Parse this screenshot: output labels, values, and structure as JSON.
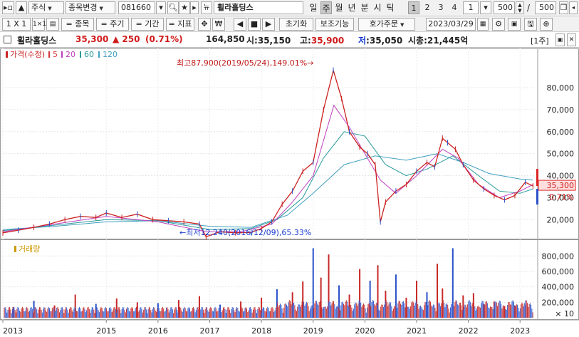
{
  "toolbar1": {
    "market_select": "주식",
    "change_item": "종목변경",
    "code": "081660",
    "stock_name": "휠라홀딩스",
    "periods": [
      "일",
      "주",
      "월",
      "년",
      "분",
      "시",
      "틱"
    ],
    "active_period": 1,
    "numbers": [
      "1",
      "2",
      "3",
      "4"
    ],
    "active_number": 0,
    "custom_number": "1",
    "count_value": "500",
    "count_total": "500"
  },
  "toolbar2": {
    "ratio": "1 X 1",
    "item": "종목",
    "cycle": "주기",
    "period": "기간",
    "indicator": "지표",
    "reset": "초기화",
    "aux": "보조기능",
    "order": "호가주문",
    "date": "2023/03/29"
  },
  "info": {
    "name": "휠라홀딩스",
    "price": "35,300",
    "change": "▲ 250",
    "change_pct": "(0.71%)",
    "volume": "164,850",
    "open_label": "시",
    "open": "35,150",
    "high_label": "고",
    "high": "35,900",
    "low_label": "저",
    "low": "35,050",
    "mcap_label": "시총",
    "mcap": "21,445억",
    "unit": "[1주]"
  },
  "chart_data": {
    "type": "line",
    "price_legend": [
      {
        "label": "가격(수정)",
        "color": "#cc2222"
      },
      {
        "label": "5",
        "color": "#d63a3a"
      },
      {
        "label": "20",
        "color": "#c040c0"
      },
      {
        "label": "60",
        "color": "#2a9a9a"
      },
      {
        "label": "120",
        "color": "#40a0c0"
      }
    ],
    "volume_legend": {
      "label": "거래량",
      "color": "#cc9900"
    },
    "price_ticks": [
      80000,
      70000,
      60000,
      50000,
      40000,
      30000,
      20000
    ],
    "price_tick_labels": [
      "80,000",
      "70,000",
      "60,000",
      "50,000",
      "40,000",
      "30,000",
      "20,000"
    ],
    "price_ylim": [
      12000,
      92000
    ],
    "volume_ticks": [
      800000,
      600000,
      400000,
      200000
    ],
    "volume_tick_labels": [
      "800,000",
      "600,000",
      "400,000",
      "200,000"
    ],
    "volume_unit": "× 10",
    "volume_ylim": [
      0,
      950000
    ],
    "x_tick_labels": [
      "2013",
      "2015",
      "2016",
      "2017",
      "2018",
      "2019",
      "2020",
      "2021",
      "2022",
      "2023"
    ],
    "x_tick_years": [
      2013,
      2015,
      2016,
      2017,
      2018,
      2019,
      2020,
      2021,
      2022,
      2023
    ],
    "x_range": [
      2013.0,
      2023.3
    ],
    "high_annotation": "최고87,900(2019/05/24),149.01%→",
    "low_annotation": "←최저12,240(2016/12/09),65.33%",
    "last_price_label": "35,300",
    "last_pct_label": "0.71%",
    "price_series": {
      "x": [
        2013.0,
        2013.3,
        2013.6,
        2013.9,
        2014.2,
        2014.5,
        2014.8,
        2015.0,
        2015.3,
        2015.6,
        2015.9,
        2016.2,
        2016.5,
        2016.8,
        2016.93,
        2017.2,
        2017.5,
        2017.8,
        2018.0,
        2018.2,
        2018.4,
        2018.6,
        2018.8,
        2019.0,
        2019.2,
        2019.39,
        2019.55,
        2019.7,
        2019.9,
        2020.05,
        2020.2,
        2020.3,
        2020.4,
        2020.6,
        2020.8,
        2021.0,
        2021.2,
        2021.35,
        2021.5,
        2021.6,
        2021.75,
        2021.9,
        2022.1,
        2022.3,
        2022.5,
        2022.7,
        2022.9,
        2023.1,
        2023.25
      ],
      "y": [
        14000,
        15200,
        16500,
        18000,
        20000,
        21500,
        21000,
        23000,
        21000,
        22500,
        20000,
        19500,
        19000,
        18000,
        12240,
        14500,
        14000,
        14200,
        16000,
        19000,
        27000,
        33000,
        42000,
        46000,
        70000,
        87900,
        75000,
        60000,
        53000,
        50000,
        45000,
        19000,
        28000,
        33000,
        36000,
        42000,
        46000,
        44000,
        57000,
        55000,
        52000,
        45000,
        38000,
        34000,
        31000,
        29000,
        31000,
        37000,
        35300
      ]
    },
    "ma20": {
      "x": [
        2013.0,
        2014.0,
        2015.0,
        2016.0,
        2016.93,
        2017.6,
        2018.2,
        2018.6,
        2019.0,
        2019.4,
        2019.7,
        2020.0,
        2020.3,
        2020.6,
        2021.0,
        2021.5,
        2021.8,
        2022.2,
        2022.6,
        2023.0,
        2023.25
      ],
      "y": [
        14500,
        18000,
        21500,
        19000,
        14500,
        14500,
        18000,
        28000,
        40000,
        72000,
        62000,
        50000,
        38000,
        32000,
        40000,
        52000,
        48000,
        36000,
        30000,
        33000,
        36000
      ]
    },
    "ma60": {
      "x": [
        2013.0,
        2014.0,
        2015.0,
        2016.0,
        2017.0,
        2017.8,
        2018.3,
        2018.8,
        2019.2,
        2019.6,
        2020.0,
        2020.4,
        2020.8,
        2021.2,
        2021.7,
        2022.2,
        2022.6,
        2023.0,
        2023.25
      ],
      "y": [
        15000,
        17500,
        20000,
        19500,
        15500,
        16000,
        20000,
        30000,
        48000,
        60000,
        58000,
        45000,
        40000,
        43000,
        49000,
        40000,
        33000,
        32000,
        34000
      ]
    },
    "ma120": {
      "x": [
        2013.0,
        2014.0,
        2015.0,
        2016.0,
        2017.0,
        2017.8,
        2018.5,
        2019.0,
        2019.6,
        2020.2,
        2020.8,
        2021.4,
        2021.9,
        2022.4,
        2023.0,
        2023.25
      ],
      "y": [
        15500,
        17000,
        19000,
        19500,
        17000,
        16500,
        22000,
        32000,
        45000,
        49000,
        47000,
        50000,
        46000,
        41000,
        38500,
        38000
      ]
    },
    "volume_series": {
      "x": [
        2013.2,
        2013.6,
        2014.0,
        2014.4,
        2014.8,
        2015.2,
        2015.6,
        2016.0,
        2016.4,
        2016.8,
        2017.2,
        2017.6,
        2018.0,
        2018.3,
        2018.6,
        2018.8,
        2019.0,
        2019.15,
        2019.3,
        2019.5,
        2019.7,
        2019.9,
        2020.1,
        2020.25,
        2020.4,
        2020.6,
        2020.8,
        2021.0,
        2021.2,
        2021.4,
        2021.5,
        2021.7,
        2021.9,
        2022.1,
        2022.3,
        2022.5,
        2022.7,
        2022.9,
        2023.1
      ],
      "y": [
        140000,
        220000,
        160000,
        300000,
        180000,
        250000,
        200000,
        190000,
        230000,
        280000,
        170000,
        210000,
        260000,
        370000,
        330000,
        470000,
        900000,
        520000,
        820000,
        420000,
        300000,
        630000,
        480000,
        680000,
        350000,
        560000,
        260000,
        480000,
        330000,
        700000,
        380000,
        900000,
        290000,
        320000,
        180000,
        210000,
        150000,
        160000,
        170000
      ]
    }
  }
}
